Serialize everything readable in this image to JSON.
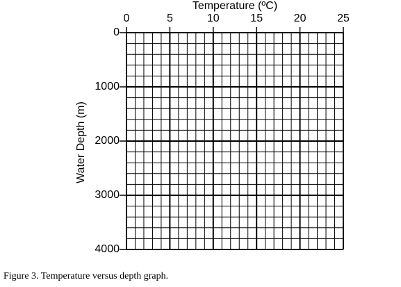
{
  "chart_data": {
    "type": "grid",
    "x_label": "Temperature (ºC)",
    "y_label": "Water Depth (m)",
    "caption": "Figure 3. Temperature versus depth graph.",
    "xlim": [
      0,
      25
    ],
    "xticks": [
      0,
      5,
      10,
      15,
      20,
      25
    ],
    "ylim": [
      0,
      4000
    ],
    "yticks": [
      0,
      1000,
      2000,
      3000,
      4000
    ],
    "y_inverted": true,
    "x_axis_position": "top",
    "grid": true,
    "minor_grid": {
      "x": 1,
      "y": 200
    },
    "color": "#000000"
  }
}
